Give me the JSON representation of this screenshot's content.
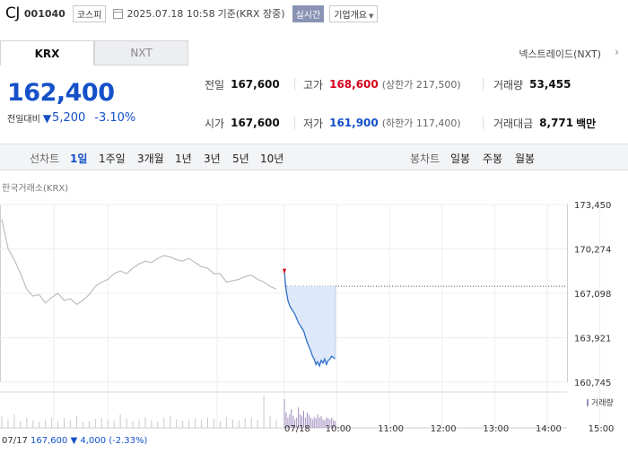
{
  "header": {
    "name": "CJ",
    "code": "001040",
    "market_badge": "코스피",
    "datetime": "2025.07.18 10:58",
    "basis": "기준(KRX 장중)",
    "realtime": "실시간",
    "company_overview": "기업개요"
  },
  "tabs": [
    {
      "label": "KRX"
    },
    {
      "label": "NXT"
    }
  ],
  "nxt_link": "넥스트레이드(NXT)",
  "price": {
    "current": "162,400",
    "change_label": "전일대비",
    "change_value": "5,200",
    "change_pct": "-3.10%"
  },
  "stats": {
    "prev_label": "전일",
    "prev_value": "167,600",
    "high_label": "고가",
    "high_value": "168,600",
    "high_limit": "(상한가 217,500)",
    "volume_label": "거래량",
    "volume_value": "53,455",
    "open_label": "시가",
    "open_value": "167,600",
    "low_label": "저가",
    "low_value": "161,900",
    "low_limit": "(하한가 117,400)",
    "amount_label": "거래대금",
    "amount_value": "8,771",
    "amount_unit": "백만"
  },
  "period_bar": {
    "line_label": "선차트",
    "line_periods": [
      "1일",
      "1주일",
      "3개월",
      "1년",
      "3년",
      "5년",
      "10년"
    ],
    "active_period": "1일",
    "candle_label": "봉차트",
    "candle_periods": [
      "일봉",
      "주봉",
      "월봉"
    ]
  },
  "chart_source": "한국거래소(KRX)",
  "chart_data": {
    "type": "line",
    "y_ticks": [
      "173,450",
      "170,274",
      "167,098",
      "163,921",
      "160,745"
    ],
    "ylim": [
      160745,
      173450
    ],
    "reference_price": 167600,
    "x_ticks": [
      "07/18",
      "10:00",
      "11:00",
      "12:00",
      "13:00",
      "14:00",
      "15:00"
    ],
    "x_ticks_minutes": [
      0,
      60,
      120,
      180,
      240,
      300,
      360
    ],
    "session_minutes": 390,
    "series": [
      {
        "role": "previous-day",
        "values": [
          172400,
          170300,
          169500,
          168500,
          167400,
          166900,
          167000,
          166400,
          166800,
          167100,
          166600,
          166700,
          166300,
          166600,
          167000,
          167600,
          167900,
          168100,
          168500,
          168700,
          168500,
          168900,
          169200,
          169400,
          169300,
          169600,
          169800,
          169700,
          169500,
          169400,
          169600,
          169300,
          169000,
          168900,
          168500,
          168500,
          167900,
          168000,
          168100,
          168300,
          168400,
          168100,
          167900,
          167600,
          167400
        ]
      },
      {
        "role": "today",
        "minutes": [
          0,
          2,
          4,
          6,
          8,
          10,
          12,
          14,
          16,
          18,
          20,
          22,
          24,
          26,
          28,
          30,
          32,
          34,
          36,
          38,
          40,
          42,
          44,
          46,
          48,
          50,
          52,
          54,
          56,
          58
        ],
        "values": [
          168600,
          167300,
          166600,
          166200,
          166000,
          165800,
          165600,
          165300,
          165000,
          164800,
          164600,
          164400,
          164000,
          163600,
          163300,
          163000,
          162600,
          162400,
          162000,
          162200,
          161900,
          162300,
          162100,
          162400,
          162000,
          162300,
          162400,
          162600,
          162500,
          162400
        ]
      }
    ],
    "volume": {
      "previous_day": [
        0.35,
        0.25,
        0.4,
        0.2,
        0.3,
        0.22,
        0.18,
        0.25,
        0.3,
        0.2,
        0.28,
        0.22,
        0.35,
        0.18,
        0.2,
        0.26,
        0.3,
        0.24,
        0.22,
        0.4,
        0.28,
        0.2,
        0.25,
        0.3,
        0.22,
        0.18,
        0.3,
        0.35,
        0.25,
        0.2,
        0.22,
        0.28,
        0.24,
        0.3,
        0.26,
        0.2,
        0.32,
        0.25,
        0.22,
        0.28,
        0.3,
        0.24,
        0.95,
        0.35,
        0.25
      ],
      "today": [
        0.85,
        0.45,
        0.3,
        0.4,
        0.55,
        0.35,
        0.25,
        0.3,
        0.6,
        0.4,
        0.35,
        0.5,
        0.3,
        0.45,
        0.38,
        0.3,
        0.25,
        0.32,
        0.28,
        0.4,
        0.3,
        0.35,
        0.25,
        0.22,
        0.3,
        0.28,
        0.25,
        0.3,
        0.22,
        0.2
      ]
    },
    "volume_legend": "거래량"
  },
  "bottom_info": {
    "date": "07/17",
    "price": "167,600",
    "change": "▼ 4,000",
    "pct": "(-2.33%)"
  },
  "colors": {
    "down": "#1450c8",
    "up": "#d6001c",
    "prev_line": "#bdbdbd",
    "today_line": "#2f6fc9",
    "fill": "#dde8fa",
    "volume": "#a08ec0"
  }
}
